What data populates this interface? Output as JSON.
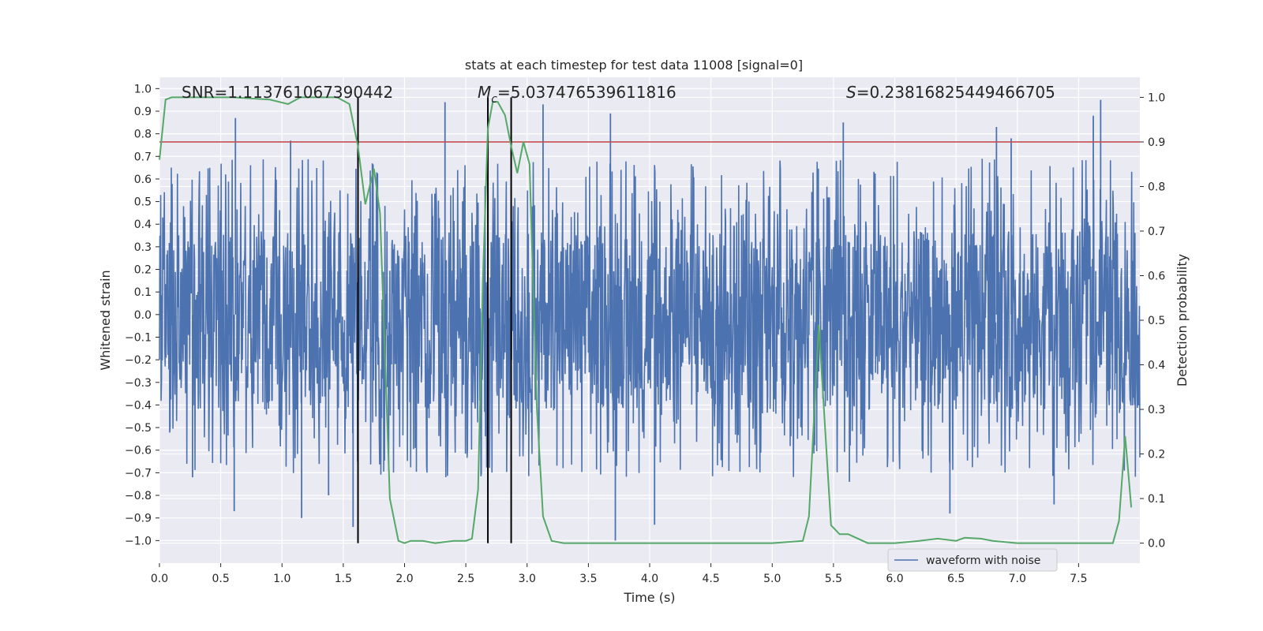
{
  "chart_data": {
    "type": "line",
    "title": "stats at each timestep for test data 11008 [signal=0]",
    "xlabel": "Time (s)",
    "ylabel": "Whitened strain",
    "y2label": "Detection probability",
    "xlim": [
      0.0,
      8.0
    ],
    "ylim": [
      -1.1,
      1.05
    ],
    "y2lim": [
      -0.045,
      1.045
    ],
    "xticks": [
      0.0,
      0.5,
      1.0,
      1.5,
      2.0,
      2.5,
      3.0,
      3.5,
      4.0,
      4.5,
      5.0,
      5.5,
      6.0,
      6.5,
      7.0,
      7.5
    ],
    "xtick_labels": [
      "0.0",
      "0.5",
      "1.0",
      "1.5",
      "2.0",
      "2.5",
      "3.0",
      "3.5",
      "4.0",
      "4.5",
      "5.0",
      "5.5",
      "6.0",
      "6.5",
      "7.0",
      "7.5"
    ],
    "yticks": [
      1.0,
      0.9,
      0.8,
      0.7,
      0.6,
      0.5,
      0.4,
      0.3,
      0.2,
      0.1,
      0.0,
      -0.1,
      -0.2,
      -0.3,
      -0.4,
      -0.5,
      -0.6,
      -0.7,
      -0.8,
      -0.9,
      -1.0
    ],
    "ytick_labels": [
      "1.0",
      "0.9",
      "0.8",
      "0.7",
      "0.6",
      "0.5",
      "0.4",
      "0.3",
      "0.2",
      "0.1",
      "0.0",
      "−0.1",
      "−0.2",
      "−0.3",
      "−0.4",
      "−0.5",
      "−0.6",
      "−0.7",
      "−0.8",
      "−0.9",
      "−1.0"
    ],
    "y2ticks": [
      1.0,
      0.9,
      0.8,
      0.7,
      0.6,
      0.5,
      0.4,
      0.3,
      0.2,
      0.1,
      0.0
    ],
    "y2tick_labels": [
      "1.0",
      "0.9",
      "0.8",
      "0.7",
      "0.6",
      "0.5",
      "0.4",
      "0.3",
      "0.2",
      "0.1",
      "0.0"
    ],
    "grid": true,
    "legend": {
      "placement": "lower-center-right",
      "entries": [
        "waveform with noise"
      ]
    },
    "annotations": {
      "snr": "SNR=1.113761067390442",
      "mc_symbol": "M",
      "mc_sub": "c",
      "mc_value": "=5.037476539611816",
      "s_symbol": "S",
      "s_value": "=0.23816825449466705"
    },
    "threshold_y2": 0.9,
    "vertical_markers_x": [
      1.62,
      2.68,
      2.87
    ],
    "series": [
      {
        "name": "waveform with noise",
        "color": "#4c72b0",
        "axis": "left",
        "kind": "noisy-strain",
        "envelope_y": [
          -0.42,
          0.37
        ],
        "spike_samples": [
          {
            "x": 0.62,
            "y": 0.87
          },
          {
            "x": 1.07,
            "y": 0.77
          },
          {
            "x": 2.33,
            "y": 0.94
          },
          {
            "x": 3.13,
            "y": 0.93
          },
          {
            "x": 3.68,
            "y": 0.89
          },
          {
            "x": 5.58,
            "y": 0.85
          },
          {
            "x": 7.68,
            "y": 0.95
          },
          {
            "x": 7.62,
            "y": 0.88
          },
          {
            "x": 6.83,
            "y": 0.83
          },
          {
            "x": 6.95,
            "y": 0.78
          },
          {
            "x": 0.61,
            "y": -0.87
          },
          {
            "x": 1.16,
            "y": -0.9
          },
          {
            "x": 1.58,
            "y": -0.94
          },
          {
            "x": 3.72,
            "y": -1.0
          },
          {
            "x": 4.04,
            "y": -0.93
          },
          {
            "x": 6.45,
            "y": -0.88
          },
          {
            "x": 0.27,
            "y": -0.72
          },
          {
            "x": 1.38,
            "y": -0.8
          },
          {
            "x": 5.63,
            "y": -0.74
          },
          {
            "x": 7.3,
            "y": -0.84
          }
        ]
      },
      {
        "name": "",
        "color": "#55a868",
        "axis": "right",
        "x": [
          0.0,
          0.05,
          0.1,
          0.3,
          0.6,
          0.9,
          1.05,
          1.15,
          1.3,
          1.45,
          1.55,
          1.62,
          1.68,
          1.75,
          1.8,
          1.88,
          1.95,
          2.0,
          2.05,
          2.15,
          2.25,
          2.4,
          2.5,
          2.55,
          2.6,
          2.64,
          2.68,
          2.72,
          2.76,
          2.82,
          2.87,
          2.92,
          2.97,
          3.02,
          3.08,
          3.13,
          3.2,
          3.3,
          3.5,
          3.75,
          4.0,
          4.5,
          5.0,
          5.25,
          5.3,
          5.38,
          5.48,
          5.55,
          5.62,
          5.7,
          5.78,
          6.0,
          6.2,
          6.35,
          6.5,
          6.57,
          6.7,
          6.8,
          7.0,
          7.5,
          7.78,
          7.83,
          7.88,
          7.93
        ],
        "values": [
          0.86,
          0.995,
          1.0,
          1.0,
          1.0,
          0.995,
          0.985,
          1.0,
          1.0,
          1.0,
          0.985,
          0.89,
          0.76,
          0.84,
          0.74,
          0.1,
          0.005,
          0.0,
          0.005,
          0.005,
          0.0,
          0.005,
          0.005,
          0.01,
          0.12,
          0.6,
          0.93,
          0.99,
          0.99,
          0.96,
          0.89,
          0.83,
          0.9,
          0.85,
          0.3,
          0.06,
          0.005,
          0.0,
          0.0,
          0.0,
          0.0,
          0.0,
          0.0,
          0.005,
          0.06,
          0.49,
          0.04,
          0.02,
          0.02,
          0.01,
          0.0,
          0.0,
          0.005,
          0.01,
          0.005,
          0.012,
          0.01,
          0.005,
          0.0,
          0.0,
          0.0,
          0.05,
          0.24,
          0.08
        ]
      }
    ]
  }
}
